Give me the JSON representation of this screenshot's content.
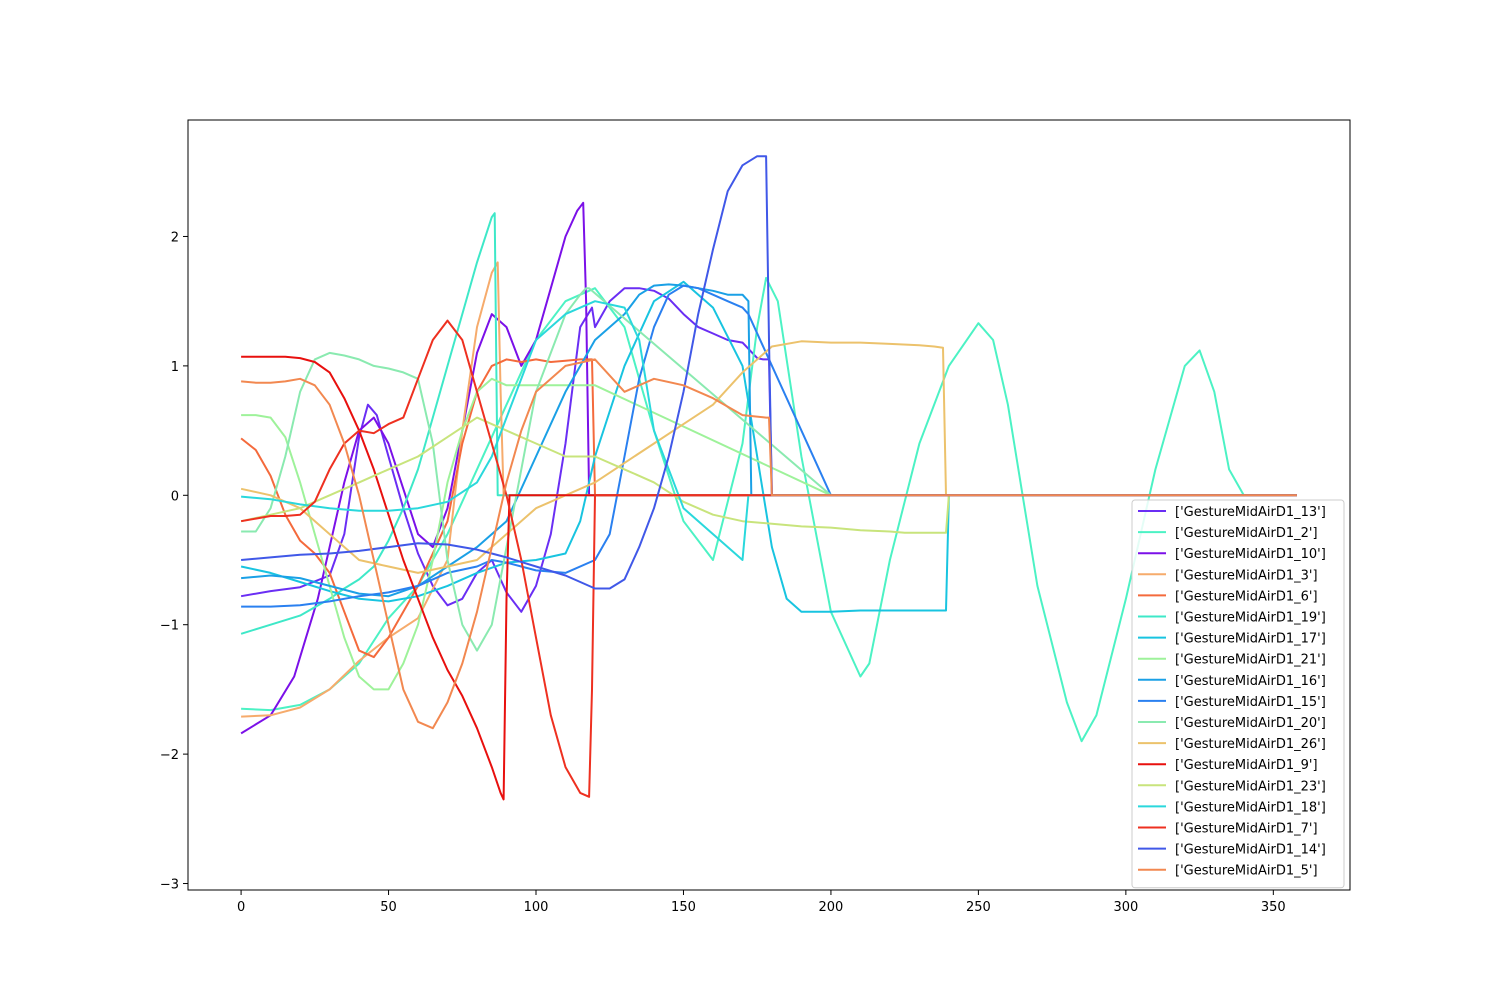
{
  "chart_data": {
    "type": "line",
    "title": "",
    "xlabel": "",
    "ylabel": "",
    "xlim": [
      -18,
      376
    ],
    "ylim": [
      -3.05,
      2.9
    ],
    "xticks": [
      0,
      50,
      100,
      150,
      200,
      250,
      300,
      350
    ],
    "yticks": [
      -3,
      -2,
      -1,
      0,
      1,
      2
    ],
    "xtick_labels": [
      "0",
      "50",
      "100",
      "150",
      "200",
      "250",
      "300",
      "350"
    ],
    "ytick_labels": [
      "−3",
      "−2",
      "−1",
      "0",
      "1",
      "2"
    ],
    "grid": false,
    "legend_position": "lower-right",
    "series": [
      {
        "name": "['GestureMidAirD1_13']",
        "color": "#6a2ef4",
        "x": [
          0,
          10,
          20,
          30,
          35,
          40,
          43,
          46,
          50,
          55,
          60,
          65,
          70,
          75,
          80,
          85,
          90,
          95,
          100,
          105,
          110,
          115,
          119,
          120,
          125,
          130,
          135,
          140,
          145,
          150,
          155,
          160,
          165,
          170,
          175,
          177,
          179,
          180,
          200,
          250,
          300,
          358
        ],
        "y": [
          -0.78,
          -0.74,
          -0.71,
          -0.62,
          -0.3,
          0.45,
          0.7,
          0.62,
          0.3,
          -0.1,
          -0.45,
          -0.7,
          -0.85,
          -0.8,
          -0.6,
          -0.5,
          -0.75,
          -0.9,
          -0.7,
          -0.3,
          0.4,
          1.3,
          1.45,
          1.3,
          1.5,
          1.6,
          1.6,
          1.58,
          1.52,
          1.4,
          1.3,
          1.25,
          1.2,
          1.18,
          1.06,
          1.05,
          1.05,
          0,
          0,
          0,
          0,
          0
        ]
      },
      {
        "name": "['GestureMidAirD1_2']",
        "color": "#4cf2c4",
        "x": [
          0,
          10,
          20,
          30,
          40,
          50,
          60,
          70,
          80,
          90,
          100,
          110,
          120,
          130,
          135,
          140,
          150,
          160,
          170,
          175,
          178,
          182,
          190,
          200,
          210,
          213,
          220,
          230,
          240,
          250,
          255,
          260,
          265,
          270,
          280,
          285,
          290,
          300,
          310,
          320,
          325,
          330,
          335,
          340,
          358
        ],
        "y": [
          -1.65,
          -1.66,
          -1.62,
          -1.5,
          -1.3,
          -0.95,
          -0.7,
          -0.3,
          0.2,
          0.7,
          1.2,
          1.5,
          1.6,
          1.3,
          0.9,
          0.5,
          -0.2,
          -0.5,
          0.4,
          1.3,
          1.68,
          1.5,
          0.3,
          -0.9,
          -1.4,
          -1.3,
          -0.5,
          0.4,
          1.0,
          1.33,
          1.2,
          0.7,
          0.0,
          -0.7,
          -1.6,
          -1.9,
          -1.7,
          -0.8,
          0.2,
          1.0,
          1.12,
          0.8,
          0.2,
          0,
          0
        ]
      },
      {
        "name": "['GestureMidAirD1_10']",
        "color": "#7b10e8",
        "x": [
          0,
          10,
          18,
          22,
          26,
          30,
          35,
          40,
          45,
          50,
          55,
          60,
          65,
          70,
          75,
          80,
          85,
          90,
          95,
          100,
          105,
          110,
          112,
          114,
          116,
          117,
          118,
          200,
          358
        ],
        "y": [
          -1.84,
          -1.7,
          -1.4,
          -1.1,
          -0.8,
          -0.4,
          0.1,
          0.5,
          0.6,
          0.4,
          0.05,
          -0.3,
          -0.4,
          -0.1,
          0.5,
          1.1,
          1.4,
          1.3,
          1.0,
          1.2,
          1.6,
          2.0,
          2.1,
          2.2,
          2.26,
          1.5,
          0,
          0,
          0
        ]
      },
      {
        "name": "['GestureMidAirD1_3']",
        "color": "#f6ab6c",
        "x": [
          0,
          10,
          20,
          30,
          40,
          50,
          60,
          70,
          75,
          80,
          85,
          87,
          88,
          89,
          200,
          358
        ],
        "y": [
          -1.71,
          -1.7,
          -1.64,
          -1.5,
          -1.28,
          -1.1,
          -0.95,
          -0.5,
          0.5,
          1.3,
          1.72,
          1.8,
          0.8,
          0,
          0,
          0
        ]
      },
      {
        "name": "['GestureMidAirD1_6']",
        "color": "#f46a3c",
        "x": [
          0,
          5,
          10,
          15,
          20,
          25,
          30,
          35,
          40,
          45,
          50,
          55,
          60,
          65,
          70,
          75,
          80,
          85,
          90,
          95,
          100,
          105,
          110,
          115,
          119,
          120,
          200,
          358
        ],
        "y": [
          0.44,
          0.35,
          0.15,
          -0.15,
          -0.35,
          -0.45,
          -0.6,
          -0.9,
          -1.2,
          -1.25,
          -1.1,
          -0.9,
          -0.7,
          -0.45,
          -0.2,
          0.4,
          0.8,
          1.0,
          1.05,
          1.03,
          1.05,
          1.03,
          1.04,
          1.05,
          1.05,
          0,
          0,
          0
        ]
      },
      {
        "name": "['GestureMidAirD1_19']",
        "color": "#3ee8c8",
        "x": [
          0,
          10,
          20,
          30,
          35,
          40,
          45,
          50,
          55,
          60,
          65,
          70,
          75,
          80,
          85,
          86,
          87,
          200,
          358
        ],
        "y": [
          -1.07,
          -1.0,
          -0.93,
          -0.8,
          -0.72,
          -0.65,
          -0.55,
          -0.35,
          -0.1,
          0.2,
          0.6,
          1.0,
          1.4,
          1.8,
          2.15,
          2.18,
          0,
          0,
          0
        ]
      },
      {
        "name": "['GestureMidAirD1_17']",
        "color": "#18c4e0",
        "x": [
          0,
          10,
          20,
          30,
          40,
          50,
          60,
          70,
          80,
          90,
          100,
          110,
          115,
          120,
          130,
          140,
          150,
          160,
          170,
          175,
          180,
          185,
          190,
          200,
          210,
          220,
          230,
          238,
          239,
          240,
          358
        ],
        "y": [
          -0.55,
          -0.6,
          -0.67,
          -0.74,
          -0.8,
          -0.82,
          -0.78,
          -0.7,
          -0.6,
          -0.52,
          -0.5,
          -0.45,
          -0.2,
          0.3,
          1.0,
          1.5,
          1.65,
          1.45,
          1.0,
          0.3,
          -0.4,
          -0.8,
          -0.9,
          -0.9,
          -0.89,
          -0.89,
          -0.89,
          -0.89,
          -0.89,
          0,
          0
        ]
      },
      {
        "name": "['GestureMidAirD1_21']",
        "color": "#9ef29a",
        "x": [
          0,
          5,
          10,
          15,
          20,
          25,
          30,
          35,
          40,
          45,
          50,
          55,
          60,
          65,
          70,
          75,
          80,
          85,
          90,
          95,
          100,
          110,
          120,
          200,
          358
        ],
        "y": [
          0.62,
          0.62,
          0.6,
          0.45,
          0.1,
          -0.3,
          -0.7,
          -1.1,
          -1.4,
          -1.5,
          -1.5,
          -1.3,
          -1.0,
          -0.5,
          0.1,
          0.5,
          0.8,
          0.9,
          0.85,
          0.85,
          0.85,
          0.85,
          0.85,
          0,
          0
        ]
      },
      {
        "name": "['GestureMidAirD1_16']",
        "color": "#1aa0e6",
        "x": [
          0,
          10,
          20,
          30,
          40,
          50,
          60,
          70,
          80,
          90,
          100,
          110,
          120,
          125,
          130,
          135,
          140,
          145,
          150,
          155,
          160,
          165,
          170,
          172,
          173,
          200,
          358
        ],
        "y": [
          -0.64,
          -0.62,
          -0.64,
          -0.7,
          -0.76,
          -0.78,
          -0.7,
          -0.55,
          -0.4,
          -0.2,
          0.3,
          0.8,
          1.2,
          1.3,
          1.4,
          1.55,
          1.62,
          1.63,
          1.62,
          1.6,
          1.58,
          1.55,
          1.55,
          1.5,
          0,
          0,
          0
        ]
      },
      {
        "name": "['GestureMidAirD1_15']",
        "color": "#2a80f0",
        "x": [
          0,
          10,
          20,
          30,
          40,
          50,
          60,
          70,
          80,
          85,
          90,
          95,
          100,
          110,
          120,
          125,
          130,
          135,
          140,
          145,
          150,
          155,
          160,
          165,
          170,
          172,
          200,
          358
        ],
        "y": [
          -0.86,
          -0.86,
          -0.85,
          -0.82,
          -0.78,
          -0.75,
          -0.7,
          -0.6,
          -0.55,
          -0.5,
          -0.52,
          -0.55,
          -0.58,
          -0.6,
          -0.5,
          -0.3,
          0.3,
          0.9,
          1.3,
          1.55,
          1.62,
          1.6,
          1.55,
          1.5,
          1.45,
          1.4,
          0,
          0
        ]
      },
      {
        "name": "['GestureMidAirD1_20']",
        "color": "#8aeab0",
        "x": [
          0,
          5,
          10,
          15,
          20,
          25,
          30,
          35,
          40,
          45,
          50,
          55,
          60,
          65,
          70,
          75,
          80,
          85,
          90,
          95,
          100,
          110,
          115,
          117,
          118,
          200,
          358
        ],
        "y": [
          -0.28,
          -0.28,
          -0.1,
          0.3,
          0.8,
          1.05,
          1.1,
          1.08,
          1.05,
          1.0,
          0.98,
          0.95,
          0.9,
          0.4,
          -0.5,
          -1.0,
          -1.2,
          -1.0,
          -0.4,
          0.2,
          0.8,
          1.4,
          1.55,
          1.6,
          1.6,
          0,
          0
        ]
      },
      {
        "name": "['GestureMidAirD1_26']",
        "color": "#ecc26c",
        "x": [
          0,
          10,
          20,
          30,
          40,
          50,
          60,
          70,
          80,
          90,
          100,
          110,
          120,
          130,
          140,
          150,
          160,
          170,
          180,
          190,
          200,
          210,
          220,
          230,
          235,
          238,
          239,
          240,
          358
        ],
        "y": [
          0.05,
          0.0,
          -0.1,
          -0.3,
          -0.5,
          -0.55,
          -0.6,
          -0.55,
          -0.5,
          -0.3,
          -0.1,
          0.0,
          0.1,
          0.25,
          0.4,
          0.55,
          0.7,
          0.95,
          1.15,
          1.19,
          1.18,
          1.18,
          1.17,
          1.16,
          1.15,
          1.14,
          0,
          0,
          0
        ]
      },
      {
        "name": "['GestureMidAirD1_9']",
        "color": "#e8100e",
        "x": [
          0,
          5,
          10,
          15,
          20,
          25,
          30,
          35,
          40,
          45,
          50,
          55,
          60,
          65,
          70,
          75,
          80,
          85,
          88,
          89,
          90,
          91,
          120,
          200,
          358
        ],
        "y": [
          1.07,
          1.07,
          1.07,
          1.07,
          1.06,
          1.03,
          0.95,
          0.75,
          0.5,
          0.2,
          -0.15,
          -0.5,
          -0.8,
          -1.1,
          -1.35,
          -1.55,
          -1.8,
          -2.1,
          -2.3,
          -2.35,
          -0.8,
          0,
          0,
          0,
          0
        ]
      },
      {
        "name": "['GestureMidAirD1_23']",
        "color": "#c8e47c",
        "x": [
          0,
          10,
          20,
          30,
          40,
          50,
          60,
          70,
          80,
          90,
          100,
          110,
          120,
          130,
          140,
          150,
          160,
          170,
          180,
          190,
          200,
          210,
          220,
          225,
          230,
          238,
          239,
          240,
          358
        ],
        "y": [
          -0.2,
          -0.15,
          -0.1,
          0.0,
          0.1,
          0.2,
          0.3,
          0.45,
          0.6,
          0.5,
          0.4,
          0.3,
          0.3,
          0.2,
          0.1,
          -0.05,
          -0.15,
          -0.2,
          -0.22,
          -0.24,
          -0.25,
          -0.27,
          -0.28,
          -0.29,
          -0.29,
          -0.29,
          -0.29,
          0,
          0
        ]
      },
      {
        "name": "['GestureMidAirD1_18']",
        "color": "#2ad8dc",
        "x": [
          0,
          10,
          20,
          30,
          40,
          50,
          60,
          70,
          80,
          85,
          90,
          95,
          100,
          110,
          120,
          130,
          135,
          140,
          150,
          160,
          170,
          172,
          200,
          358
        ],
        "y": [
          -0.01,
          -0.03,
          -0.07,
          -0.1,
          -0.12,
          -0.12,
          -0.1,
          -0.05,
          0.1,
          0.3,
          0.6,
          0.9,
          1.2,
          1.4,
          1.5,
          1.45,
          1.2,
          0.5,
          -0.1,
          -0.3,
          -0.5,
          0,
          0,
          0
        ]
      },
      {
        "name": "['GestureMidAirD1_7']",
        "color": "#ee3020",
        "x": [
          0,
          5,
          10,
          15,
          20,
          25,
          30,
          35,
          40,
          45,
          50,
          55,
          60,
          65,
          70,
          75,
          80,
          85,
          90,
          95,
          100,
          105,
          110,
          115,
          118,
          119,
          120,
          200,
          358
        ],
        "y": [
          -0.2,
          -0.18,
          -0.16,
          -0.16,
          -0.15,
          -0.05,
          0.2,
          0.4,
          0.5,
          0.48,
          0.55,
          0.6,
          0.9,
          1.2,
          1.35,
          1.2,
          0.8,
          0.4,
          0.0,
          -0.5,
          -1.1,
          -1.7,
          -2.1,
          -2.3,
          -2.33,
          -1.5,
          0,
          0,
          0
        ]
      },
      {
        "name": "['GestureMidAirD1_14']",
        "color": "#4058e8",
        "x": [
          0,
          10,
          20,
          30,
          40,
          50,
          60,
          70,
          80,
          90,
          100,
          110,
          120,
          125,
          130,
          135,
          140,
          145,
          150,
          155,
          160,
          165,
          170,
          175,
          178,
          179,
          180,
          200,
          358
        ],
        "y": [
          -0.5,
          -0.48,
          -0.46,
          -0.45,
          -0.43,
          -0.4,
          -0.37,
          -0.38,
          -0.42,
          -0.48,
          -0.55,
          -0.62,
          -0.72,
          -0.72,
          -0.65,
          -0.4,
          -0.1,
          0.3,
          0.8,
          1.4,
          1.9,
          2.35,
          2.55,
          2.62,
          2.62,
          1.2,
          0,
          0,
          0
        ]
      },
      {
        "name": "['GestureMidAirD1_5']",
        "color": "#f28850",
        "x": [
          0,
          5,
          10,
          15,
          20,
          25,
          30,
          35,
          40,
          45,
          50,
          55,
          60,
          65,
          70,
          75,
          80,
          85,
          90,
          95,
          100,
          110,
          120,
          130,
          140,
          150,
          160,
          170,
          178,
          179,
          180,
          200,
          358
        ],
        "y": [
          0.88,
          0.87,
          0.87,
          0.88,
          0.9,
          0.85,
          0.7,
          0.4,
          0.0,
          -0.5,
          -1.0,
          -1.5,
          -1.75,
          -1.8,
          -1.6,
          -1.3,
          -0.9,
          -0.4,
          0.1,
          0.5,
          0.8,
          1.0,
          1.05,
          0.8,
          0.9,
          0.85,
          0.75,
          0.62,
          0.6,
          0.6,
          0,
          0,
          0
        ]
      }
    ]
  }
}
